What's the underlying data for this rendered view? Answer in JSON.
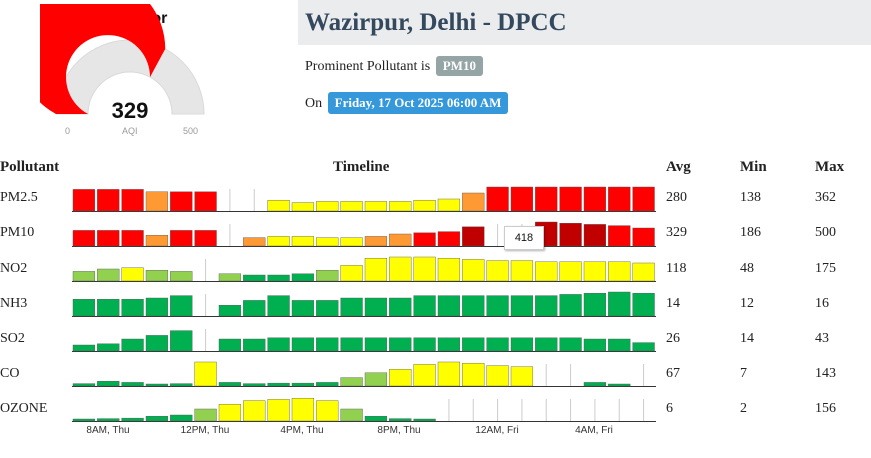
{
  "gauge": {
    "category": "Very Poor",
    "value": 329,
    "min": "0",
    "max": "500",
    "unit": "AQI",
    "fraction": 0.658,
    "color": "#ff0000"
  },
  "station": {
    "name": "Wazirpur, Delhi - DPCC",
    "pollutant_prefix": "Prominent Pollutant is",
    "prominent_pollutant": "PM10",
    "on_prefix": "On",
    "datetime": "Friday, 17 Oct 2025 06:00 AM"
  },
  "table": {
    "headers": {
      "pollutant": "Pollutant",
      "timeline": "Timeline",
      "avg": "Avg",
      "min": "Min",
      "max": "Max"
    },
    "rows": [
      {
        "name": "PM2.5",
        "avg": "280",
        "min": "138",
        "max": "362"
      },
      {
        "name": "PM10",
        "avg": "329",
        "min": "186",
        "max": "500"
      },
      {
        "name": "NO2",
        "avg": "118",
        "min": "48",
        "max": "175"
      },
      {
        "name": "NH3",
        "avg": "14",
        "min": "12",
        "max": "16"
      },
      {
        "name": "SO2",
        "avg": "26",
        "min": "14",
        "max": "43"
      },
      {
        "name": "CO",
        "avg": "67",
        "min": "7",
        "max": "143"
      },
      {
        "name": "OZONE",
        "avg": "6",
        "min": "2",
        "max": "156"
      }
    ]
  },
  "tooltip": "418",
  "colors": {
    "good": "#00b050",
    "satisfactory": "#92d050",
    "moderate": "#ffff00",
    "poor": "#ff9933",
    "very_poor": "#ff0000",
    "severe": "#c00000"
  },
  "chart_data": {
    "type": "bar",
    "x_ticks": [
      "8AM, Thu",
      "12PM, Thu",
      "4PM, Thu",
      "8PM, Thu",
      "12AM, Fri",
      "4AM, Fri"
    ],
    "series": [
      {
        "name": "PM2.5",
        "values": [
          0.9,
          0.9,
          0.9,
          0.8,
          0.8,
          0.8,
          null,
          null,
          0.45,
          0.35,
          0.4,
          0.4,
          0.4,
          0.4,
          0.45,
          0.5,
          0.75,
          1,
          1,
          1,
          1,
          1,
          1,
          1,
          1,
          1,
          1
        ],
        "colors": [
          "very_poor",
          "very_poor",
          "very_poor",
          "poor",
          "very_poor",
          "very_poor",
          null,
          null,
          "moderate",
          "moderate",
          "moderate",
          "moderate",
          "moderate",
          "moderate",
          "moderate",
          "moderate",
          "poor",
          "very_poor",
          "very_poor",
          "very_poor",
          "very_poor",
          "very_poor",
          "very_poor",
          "very_poor",
          "very_poor",
          "very_poor",
          "very_poor"
        ]
      },
      {
        "name": "PM10",
        "values": [
          0.65,
          0.65,
          0.65,
          0.45,
          0.65,
          0.65,
          null,
          0.35,
          0.4,
          0.4,
          0.35,
          0.35,
          0.4,
          0.5,
          0.55,
          0.6,
          0.8,
          null,
          null,
          1,
          0.95,
          0.9,
          0.85,
          0.75,
          0.65,
          0.65,
          0.65
        ],
        "colors": [
          "very_poor",
          "very_poor",
          "very_poor",
          "poor",
          "very_poor",
          "very_poor",
          null,
          "poor",
          "moderate",
          "moderate",
          "moderate",
          "moderate",
          "poor",
          "poor",
          "very_poor",
          "very_poor",
          "severe",
          null,
          null,
          "severe",
          "severe",
          "severe",
          "very_poor",
          "very_poor",
          "very_poor",
          "very_poor",
          "very_poor"
        ]
      },
      {
        "name": "NO2",
        "values": [
          0.4,
          0.5,
          0.55,
          0.45,
          0.4,
          null,
          0.3,
          0.25,
          0.25,
          0.3,
          0.45,
          0.65,
          0.95,
          1,
          1,
          0.95,
          0.9,
          0.85,
          0.85,
          0.8,
          0.8,
          0.8,
          0.8,
          0.75,
          0.75,
          0.75,
          0.75
        ],
        "colors": [
          "satisfactory",
          "satisfactory",
          "moderate",
          "satisfactory",
          "satisfactory",
          null,
          "satisfactory",
          "good",
          "good",
          "good",
          "satisfactory",
          "moderate",
          "moderate",
          "moderate",
          "moderate",
          "moderate",
          "moderate",
          "moderate",
          "moderate",
          "moderate",
          "moderate",
          "moderate",
          "moderate",
          "moderate",
          "moderate",
          "moderate",
          "moderate"
        ]
      },
      {
        "name": "NH3",
        "values": [
          0.7,
          0.7,
          0.7,
          0.75,
          0.85,
          null,
          0.45,
          0.65,
          0.85,
          0.65,
          0.65,
          0.75,
          0.75,
          0.75,
          0.85,
          0.85,
          0.85,
          0.85,
          0.85,
          0.85,
          0.9,
          0.95,
          1,
          0.95,
          0.9,
          0.9,
          0.9
        ],
        "colors": [
          "good",
          "good",
          "good",
          "good",
          "good",
          null,
          "good",
          "good",
          "good",
          "good",
          "good",
          "good",
          "good",
          "good",
          "good",
          "good",
          "good",
          "good",
          "good",
          "good",
          "good",
          "good",
          "good",
          "good",
          "good",
          "good",
          "good"
        ]
      },
      {
        "name": "SO2",
        "values": [
          0.25,
          0.3,
          0.5,
          0.65,
          0.85,
          null,
          0.5,
          0.5,
          0.55,
          0.55,
          0.55,
          0.55,
          0.55,
          0.55,
          0.55,
          0.55,
          0.55,
          0.55,
          0.55,
          0.55,
          0.55,
          0.5,
          0.5,
          0.35,
          0.3,
          0.3,
          0.4
        ],
        "colors": [
          "good",
          "good",
          "good",
          "good",
          "good",
          null,
          "good",
          "good",
          "good",
          "good",
          "good",
          "good",
          "good",
          "good",
          "good",
          "good",
          "good",
          "good",
          "good",
          "good",
          "good",
          "good",
          "good",
          "good",
          "good",
          "good",
          "good"
        ]
      },
      {
        "name": "CO",
        "values": [
          0.1,
          0.2,
          0.15,
          0.05,
          0.1,
          1,
          0.15,
          0.1,
          0.12,
          0.12,
          0.15,
          0.35,
          0.55,
          0.7,
          0.9,
          1,
          0.95,
          0.85,
          0.8,
          null,
          null,
          0.15,
          0.05,
          null,
          0.15,
          0.2,
          null
        ],
        "colors": [
          "good",
          "good",
          "good",
          "good",
          "good",
          "moderate",
          "good",
          "good",
          "good",
          "good",
          "good",
          "satisfactory",
          "satisfactory",
          "moderate",
          "moderate",
          "moderate",
          "moderate",
          "moderate",
          "moderate",
          null,
          null,
          "good",
          "good",
          null,
          "good",
          "good",
          null
        ],
        "extra": "tail"
      },
      {
        "name": "OZONE",
        "values": [
          0.05,
          0.1,
          0.12,
          0.2,
          0.25,
          0.5,
          0.7,
          0.85,
          0.9,
          0.95,
          0.85,
          0.5,
          0.2,
          0.1,
          0.05,
          null,
          null,
          null,
          null,
          null,
          null,
          null,
          null,
          null,
          null,
          null,
          null
        ],
        "colors": [
          "good",
          "good",
          "good",
          "good",
          "good",
          "satisfactory",
          "moderate",
          "moderate",
          "moderate",
          "moderate",
          "moderate",
          "satisfactory",
          "good",
          "good",
          "good",
          null,
          null,
          null,
          null,
          null,
          null,
          null,
          null,
          null,
          null,
          null,
          null
        ]
      }
    ]
  }
}
